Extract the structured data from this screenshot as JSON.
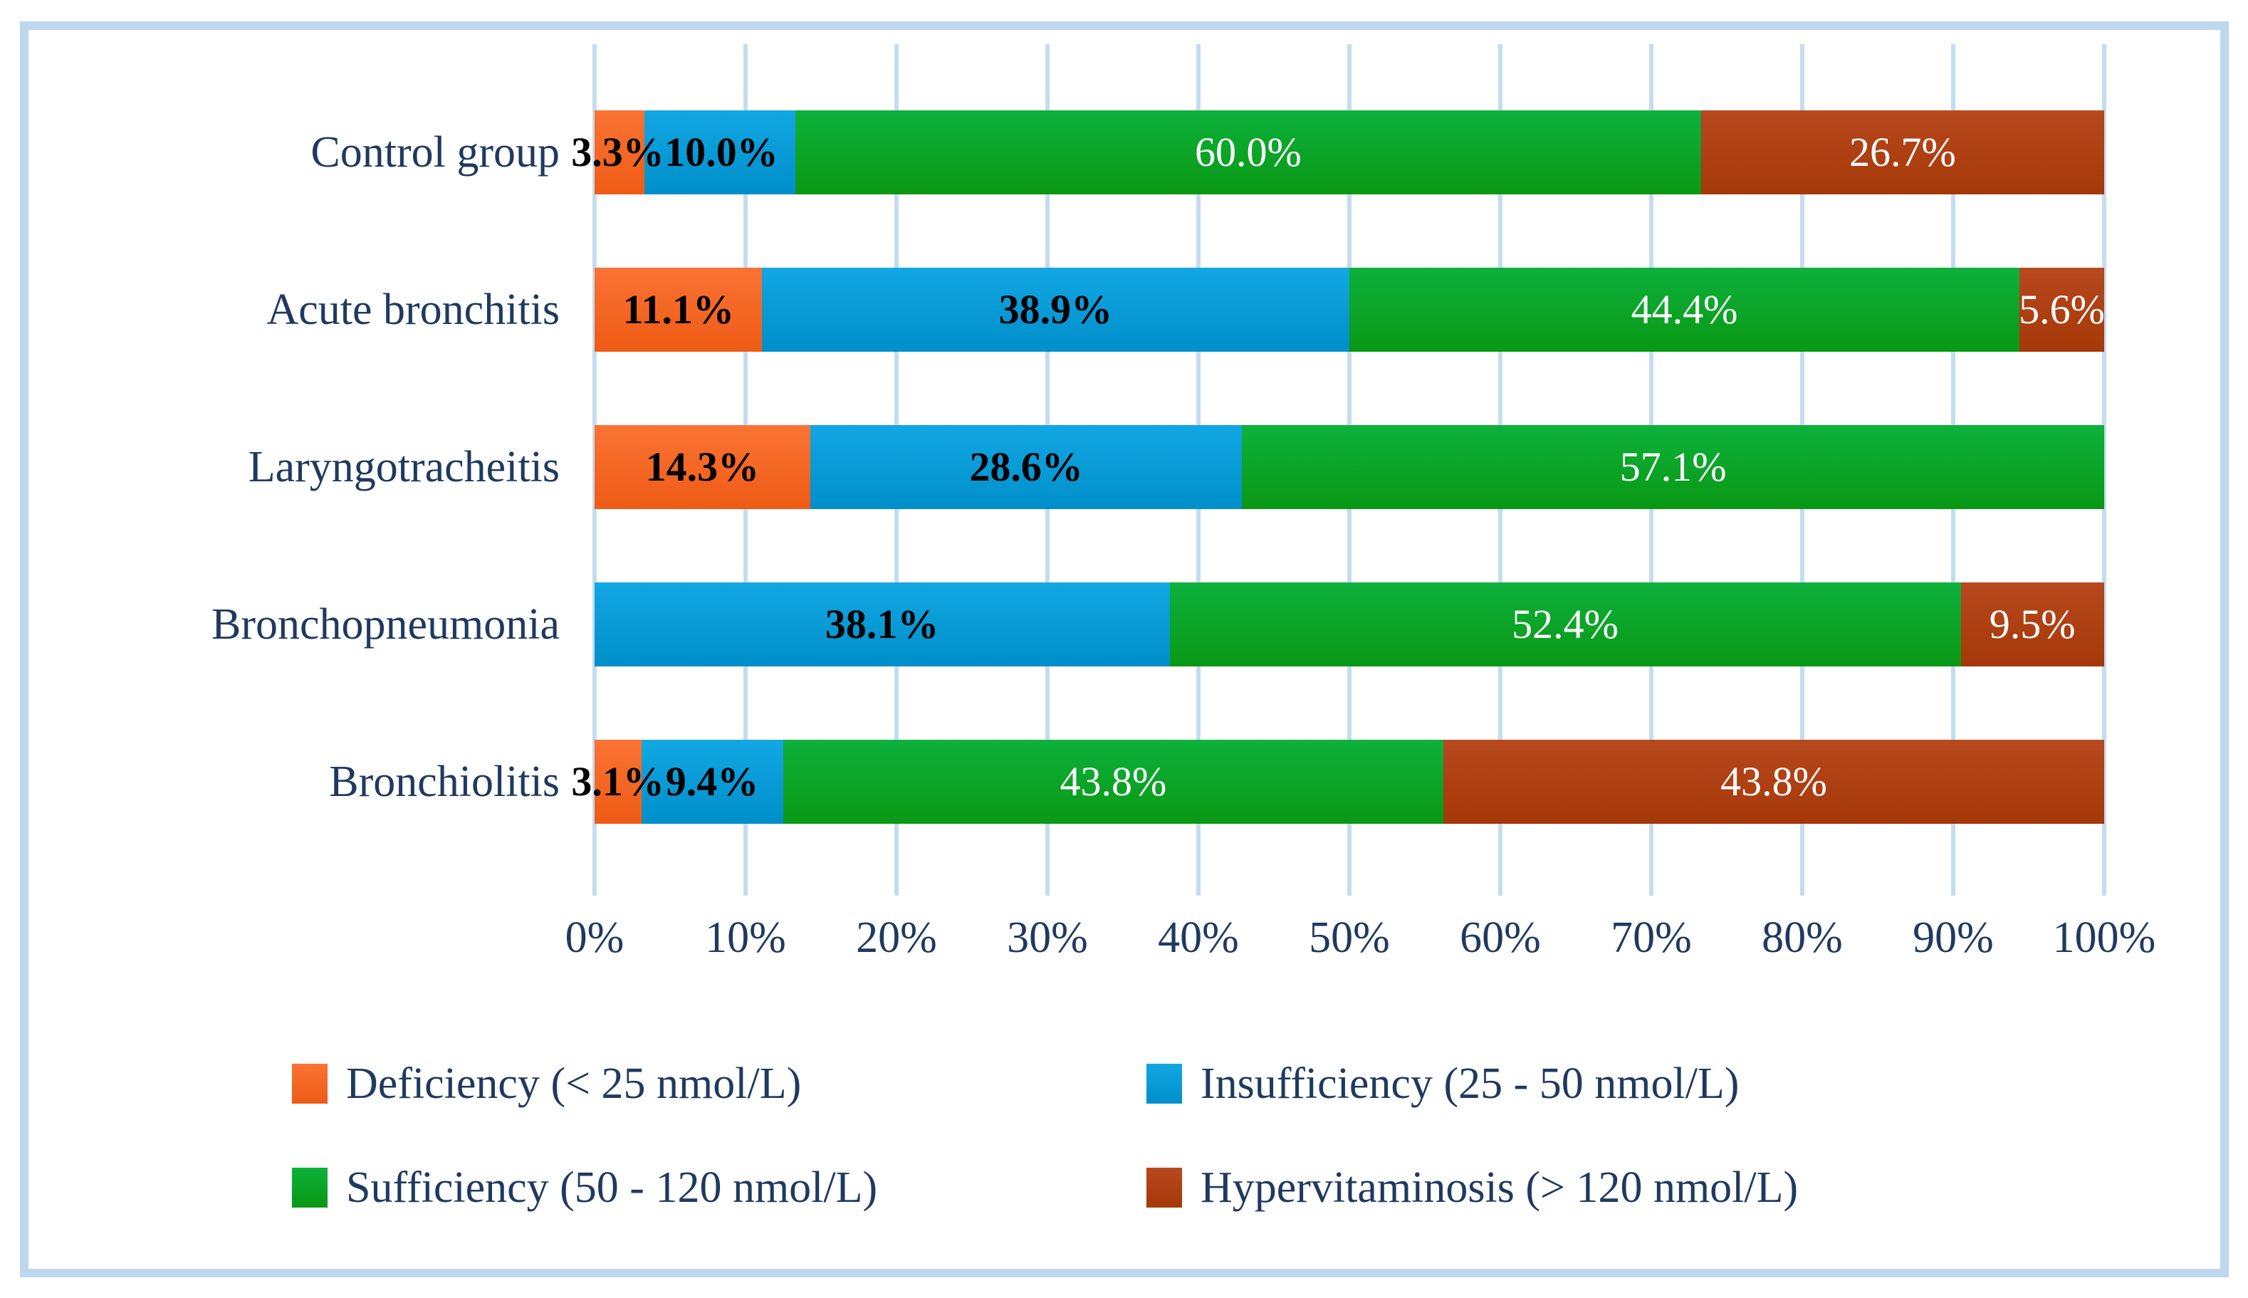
{
  "chart_data": {
    "type": "bar",
    "orientation": "horizontal",
    "stacked": true,
    "unit": "%",
    "categories": [
      "Control group",
      "Acute bronchitis",
      "Laryngotracheitis",
      "Bronchopneumonia",
      "Bronchiolitis"
    ],
    "series": [
      {
        "name": "Deficiency (< 25 nmol/L)",
        "color": "#F4641E",
        "color_top": "#FA7334",
        "color_bottom": "#EE5B15",
        "label_color": "black",
        "values": [
          3.3,
          11.1,
          14.3,
          0,
          3.1
        ],
        "labels": [
          "3.3%",
          "11.1%",
          "14.3%",
          "",
          "3.1%"
        ]
      },
      {
        "name": "Insufficiency (25 - 50 nmol/L)",
        "color": "#00A0DE",
        "color_top": "#12A7E3",
        "color_bottom": "#008FCA",
        "label_color": "black",
        "values": [
          10.0,
          38.9,
          28.6,
          38.1,
          9.4
        ],
        "labels": [
          "10.0%",
          "38.9%",
          "28.6%",
          "38.1%",
          "9.4%"
        ]
      },
      {
        "name": "Sufficiency (50 - 120 nmol/L)",
        "color": "#0CA81F",
        "color_top": "#0DB13C",
        "color_bottom": "#0A9814",
        "label_color": "white",
        "values": [
          60.0,
          44.4,
          57.1,
          52.4,
          43.8
        ],
        "labels": [
          "60.0%",
          "44.4%",
          "57.1%",
          "52.4%",
          "43.8%"
        ]
      },
      {
        "name": "Hypervitaminosis (> 120 nmol/L)",
        "color": "#AF3D12",
        "color_top": "#B8481E",
        "color_bottom": "#A53808",
        "label_color": "white",
        "values": [
          26.7,
          5.6,
          0,
          9.5,
          43.8
        ],
        "labels": [
          "26.7%",
          "5.6%",
          "",
          "9.5%",
          "43.8%"
        ]
      }
    ],
    "x_ticks": [
      "0%",
      "10%",
      "20%",
      "30%",
      "40%",
      "50%",
      "60%",
      "70%",
      "80%",
      "90%",
      "100%"
    ],
    "xlim": [
      0,
      100
    ],
    "grid": true,
    "legend_position": "bottom"
  },
  "style": {
    "background": "#FFFFFF",
    "gridline_color": "#C5DCF0",
    "border_color": "#BDD7EE",
    "text_color": "#1F3A60"
  }
}
